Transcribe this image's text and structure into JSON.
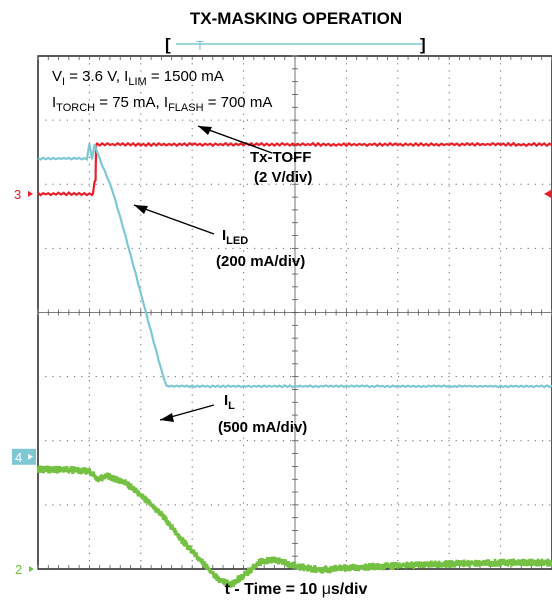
{
  "chart_data": {
    "type": "line",
    "title": "TX-MASKING OPERATION",
    "conditions": {
      "line1": {
        "v_sym": "V",
        "v_sub": "I",
        "v_val": " = 3.6 V, ",
        "lim_sym": "I",
        "lim_sub": "LIM",
        "lim_val": " = 1500 mA"
      },
      "line2": {
        "torch_sym": "I",
        "torch_sub": "TORCH",
        "torch_val": " = 75 mA, ",
        "flash_sym": "I",
        "flash_sub": "FLASH",
        "flash_val": " = 700 mA"
      }
    },
    "xlabel_prefix": "t - Time =  10 ",
    "xlabel_mu": "μ",
    "xlabel_suffix": "s/div",
    "x_divisions": 10,
    "y_divisions": 8,
    "x_unit": "div",
    "series": [
      {
        "key": "txtoff",
        "color": "#e8202a",
        "marker": "3",
        "annotation": "Tx-TOFF",
        "scale": "(2 V/div)",
        "x": [
          0,
          1.07,
          1.1,
          1.12,
          1.13,
          10
        ],
        "y": [
          5.85,
          5.85,
          6.05,
          6.05,
          6.62,
          6.62
        ]
      },
      {
        "key": "iled",
        "color": "#7ec8d3",
        "marker": "4",
        "annotation_sym": "I",
        "annotation_sub": "LED",
        "scale": "(200 mA/div)",
        "x": [
          0,
          0.95,
          1.0,
          1.05,
          1.1,
          1.2,
          1.45,
          1.7,
          1.95,
          2.2,
          2.4,
          2.5,
          2.55,
          2.7,
          3.0,
          10
        ],
        "y": [
          6.4,
          6.4,
          6.62,
          6.4,
          6.62,
          6.4,
          5.9,
          5.2,
          4.45,
          3.7,
          3.1,
          2.85,
          2.85,
          2.85,
          2.85,
          2.85
        ]
      },
      {
        "key": "il",
        "color": "#74c043",
        "marker": "2",
        "annotation_sym": "I",
        "annotation_sub": "L",
        "scale": "(500 mA/div)",
        "x": [
          0,
          0.5,
          1.0,
          1.15,
          1.35,
          1.7,
          2.0,
          2.4,
          2.8,
          3.2,
          3.5,
          3.75,
          4.0,
          4.3,
          4.6,
          5.0,
          5.5,
          6.0,
          7.0,
          8.0,
          9.0,
          10.0
        ],
        "y": [
          1.55,
          1.55,
          1.53,
          1.4,
          1.45,
          1.35,
          1.15,
          0.85,
          0.45,
          0.1,
          -0.15,
          -0.25,
          -0.1,
          0.1,
          0.15,
          0.05,
          -0.02,
          0.02,
          0.05,
          0.08,
          0.1,
          0.1
        ]
      }
    ],
    "level_markers": {
      "txtoff": 5.85,
      "iled": 1.75,
      "il": 0.0
    },
    "trigger_marker": {
      "y": 5.85
    },
    "timebase_glyph": "T",
    "bracket_left": "[",
    "bracket_right": "]"
  }
}
